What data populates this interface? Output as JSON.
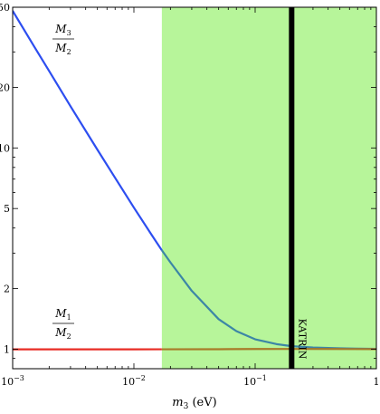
{
  "chart_data": {
    "type": "line",
    "xscale": "log",
    "yscale": "log",
    "xlim": [
      0.001,
      1
    ],
    "ylim": [
      0.8,
      50
    ],
    "x_ticks": [
      {
        "value": 0.001,
        "label": "10",
        "exp": "−3"
      },
      {
        "value": 0.01,
        "label": "10",
        "exp": "−2"
      },
      {
        "value": 0.1,
        "label": "10",
        "exp": "−1"
      },
      {
        "value": 1,
        "label": "1",
        "exp": ""
      }
    ],
    "y_ticks": [
      {
        "value": 1,
        "label": "1"
      },
      {
        "value": 2,
        "label": "2"
      },
      {
        "value": 5,
        "label": "5"
      },
      {
        "value": 10,
        "label": "10"
      },
      {
        "value": 20,
        "label": "20"
      },
      {
        "value": 50,
        "label": "50"
      }
    ],
    "xlabel": {
      "var": "m",
      "sub": "3",
      "unit": " (eV)"
    },
    "shaded_region": {
      "x_from": 0.017,
      "x_to": 1,
      "color": "#b7f59a"
    },
    "vertical_line": {
      "x": 0.2,
      "label": "KATRIN",
      "color": "#000000"
    },
    "series": [
      {
        "id": "m3-over-m2",
        "label_num": {
          "var": "M",
          "sub": "3"
        },
        "label_den": {
          "var": "M",
          "sub": "2"
        },
        "color": "#2d4ef0",
        "shaded_color": "#3c86a6",
        "points": [
          [
            0.001,
            48.0
          ],
          [
            0.0015,
            32.0
          ],
          [
            0.002,
            24.1
          ],
          [
            0.003,
            16.1
          ],
          [
            0.005,
            9.8
          ],
          [
            0.007,
            7.1
          ],
          [
            0.01,
            5.05
          ],
          [
            0.014,
            3.7
          ],
          [
            0.017,
            3.1
          ],
          [
            0.02,
            2.7
          ],
          [
            0.03,
            1.95
          ],
          [
            0.05,
            1.41
          ],
          [
            0.07,
            1.23
          ],
          [
            0.1,
            1.12
          ],
          [
            0.15,
            1.06
          ],
          [
            0.2,
            1.035
          ],
          [
            0.3,
            1.02
          ],
          [
            0.5,
            1.01
          ],
          [
            0.7,
            1.006
          ],
          [
            1.0,
            1.004
          ]
        ]
      },
      {
        "id": "m1-over-m2",
        "label_num": {
          "var": "M",
          "sub": "1"
        },
        "label_den": {
          "var": "M",
          "sub": "2"
        },
        "color": "#e82c24",
        "shaded_color": "#a87a28",
        "points": [
          [
            0.001,
            0.998
          ],
          [
            0.01,
            0.998
          ],
          [
            0.017,
            0.999
          ],
          [
            0.05,
            1.0
          ],
          [
            0.1,
            1.002
          ],
          [
            0.2,
            1.003
          ],
          [
            0.5,
            1.002
          ],
          [
            1.0,
            1.001
          ]
        ]
      }
    ]
  }
}
